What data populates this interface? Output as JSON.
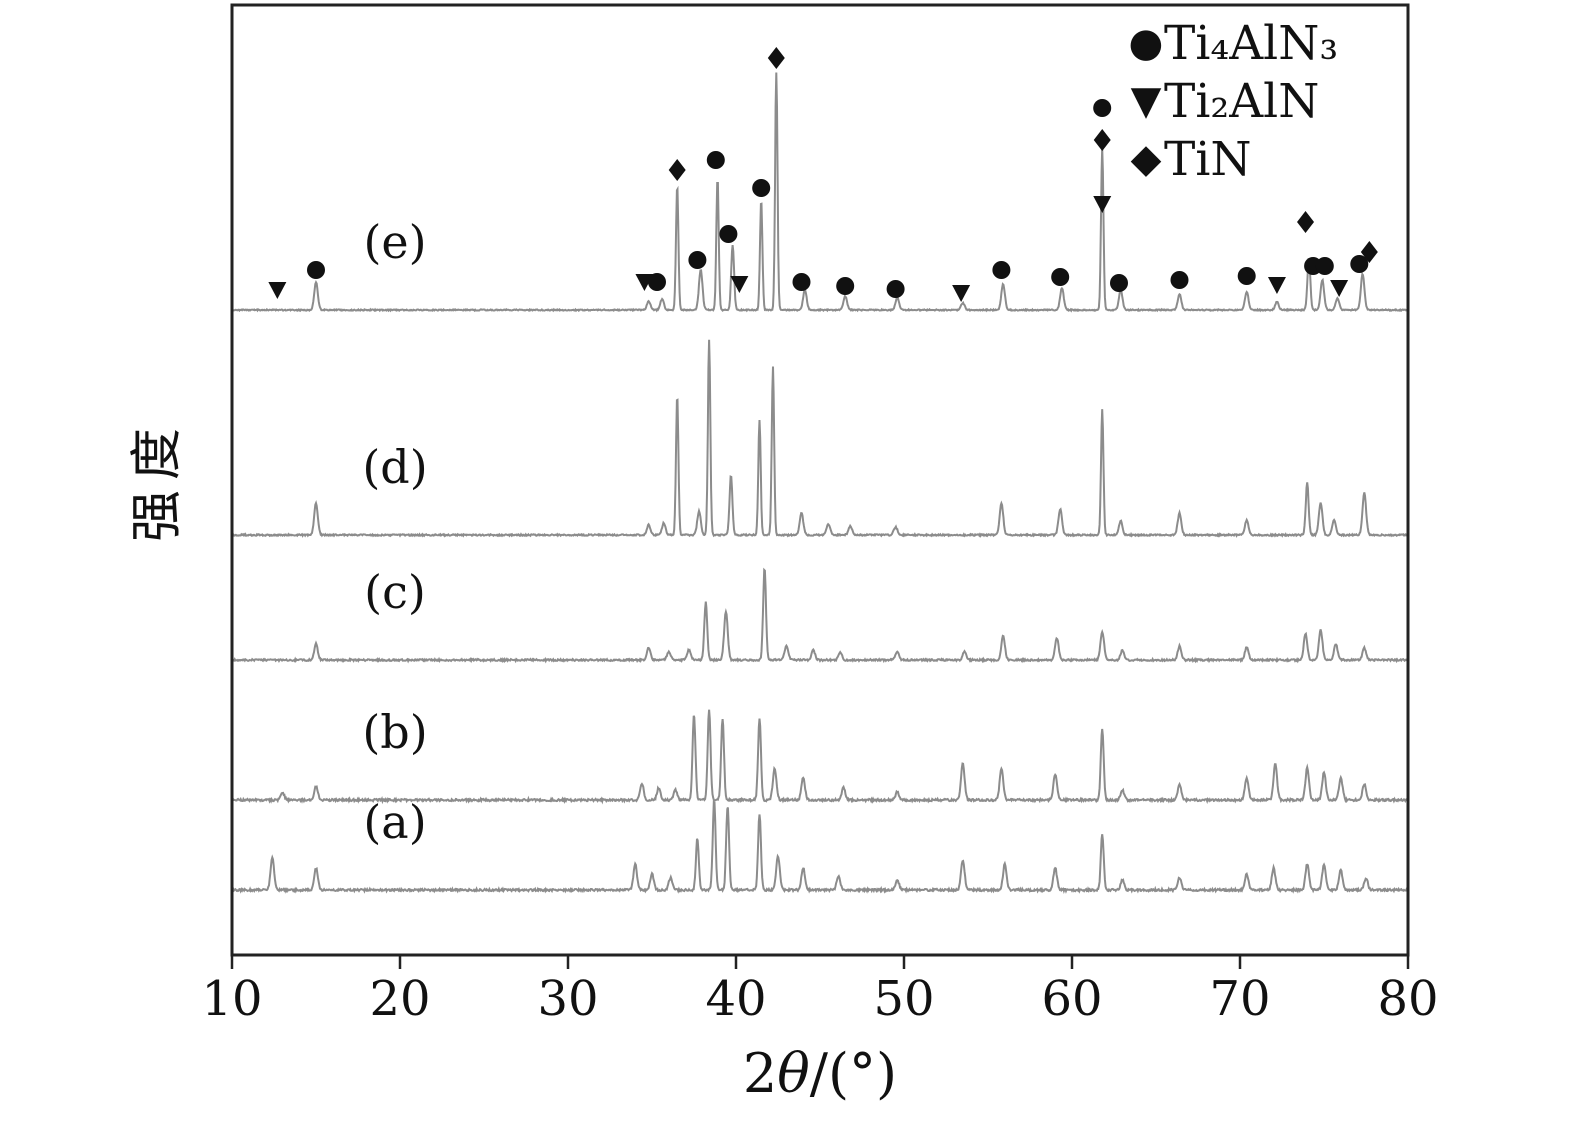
{
  "figure": {
    "ylabel": "强度",
    "xlabel_parts": {
      "pre": "2",
      "theta": "θ",
      "post": "/(°)"
    }
  },
  "chart_data": {
    "type": "line",
    "title": "",
    "xlabel": "2θ/(°)",
    "ylabel": "强度",
    "x_range": [
      10,
      80
    ],
    "ylim": [
      0,
      950
    ],
    "x_ticks": [
      10,
      20,
      30,
      40,
      50,
      60,
      70,
      80
    ],
    "grid": false,
    "legend_position": "top-right",
    "legend": [
      {
        "glyph": "●",
        "marker": "circle",
        "label": "Ti₄AlN₃"
      },
      {
        "glyph": "▼",
        "marker": "triangle-down",
        "label": "Ti₂AlN"
      },
      {
        "glyph": "◆",
        "marker": "diamond",
        "label": "TiN"
      }
    ],
    "series": [
      {
        "name": "(a)",
        "offset": 65,
        "peaks": [
          [
            12.4,
            32
          ],
          [
            15.0,
            22
          ],
          [
            34.0,
            26
          ],
          [
            35.0,
            16
          ],
          [
            36.1,
            12
          ],
          [
            37.7,
            52
          ],
          [
            38.7,
            90
          ],
          [
            39.5,
            84
          ],
          [
            41.4,
            76
          ],
          [
            42.5,
            34
          ],
          [
            44.0,
            22
          ],
          [
            46.1,
            14
          ],
          [
            49.6,
            10
          ],
          [
            53.5,
            30
          ],
          [
            56.0,
            26
          ],
          [
            59.0,
            22
          ],
          [
            61.8,
            56
          ],
          [
            63.0,
            10
          ],
          [
            66.4,
            12
          ],
          [
            70.4,
            16
          ],
          [
            72.0,
            22
          ],
          [
            74.0,
            26
          ],
          [
            75.0,
            26
          ],
          [
            76.0,
            20
          ],
          [
            77.5,
            12
          ]
        ]
      },
      {
        "name": "(b)",
        "offset": 155,
        "peaks": [
          [
            13.0,
            8
          ],
          [
            15.0,
            14
          ],
          [
            34.4,
            16
          ],
          [
            35.4,
            12
          ],
          [
            36.4,
            10
          ],
          [
            37.5,
            86
          ],
          [
            38.4,
            90
          ],
          [
            39.2,
            82
          ],
          [
            41.4,
            82
          ],
          [
            42.3,
            32
          ],
          [
            44.0,
            22
          ],
          [
            46.4,
            12
          ],
          [
            49.6,
            8
          ],
          [
            53.5,
            36
          ],
          [
            55.8,
            32
          ],
          [
            59.0,
            26
          ],
          [
            61.8,
            72
          ],
          [
            63.0,
            10
          ],
          [
            66.4,
            16
          ],
          [
            70.4,
            22
          ],
          [
            72.1,
            36
          ],
          [
            74.0,
            32
          ],
          [
            75.0,
            28
          ],
          [
            76.0,
            22
          ],
          [
            77.4,
            16
          ]
        ]
      },
      {
        "name": "(c)",
        "offset": 295,
        "peaks": [
          [
            15.0,
            16
          ],
          [
            34.8,
            12
          ],
          [
            36.0,
            8
          ],
          [
            37.2,
            10
          ],
          [
            38.2,
            58
          ],
          [
            39.4,
            48
          ],
          [
            41.7,
            92
          ],
          [
            43.0,
            15
          ],
          [
            44.6,
            10
          ],
          [
            46.2,
            8
          ],
          [
            49.6,
            8
          ],
          [
            53.6,
            8
          ],
          [
            55.9,
            24
          ],
          [
            59.1,
            22
          ],
          [
            61.8,
            28
          ],
          [
            63.0,
            10
          ],
          [
            66.4,
            14
          ],
          [
            70.4,
            13
          ],
          [
            73.9,
            26
          ],
          [
            74.8,
            30
          ],
          [
            75.7,
            16
          ],
          [
            77.4,
            12
          ]
        ]
      },
      {
        "name": "(d)",
        "offset": 420,
        "peaks": [
          [
            15.0,
            32
          ],
          [
            34.8,
            10
          ],
          [
            35.7,
            12
          ],
          [
            36.5,
            140
          ],
          [
            37.8,
            24
          ],
          [
            38.4,
            195
          ],
          [
            39.7,
            60
          ],
          [
            41.4,
            115
          ],
          [
            42.2,
            168
          ],
          [
            43.9,
            22
          ],
          [
            45.5,
            11
          ],
          [
            46.8,
            9
          ],
          [
            49.5,
            8
          ],
          [
            55.8,
            32
          ],
          [
            59.3,
            26
          ],
          [
            61.8,
            126
          ],
          [
            62.9,
            14
          ],
          [
            66.4,
            22
          ],
          [
            70.4,
            15
          ],
          [
            74.0,
            52
          ],
          [
            74.8,
            32
          ],
          [
            75.6,
            15
          ],
          [
            77.4,
            42
          ]
        ]
      },
      {
        "name": "(e)",
        "offset": 645,
        "peaks": [
          [
            15.0,
            28
          ],
          [
            34.8,
            9
          ],
          [
            35.6,
            11
          ],
          [
            36.5,
            125
          ],
          [
            37.9,
            40
          ],
          [
            38.9,
            132
          ],
          [
            39.8,
            65
          ],
          [
            41.5,
            110
          ],
          [
            42.4,
            238
          ],
          [
            44.1,
            20
          ],
          [
            46.5,
            14
          ],
          [
            49.6,
            12
          ],
          [
            53.5,
            7
          ],
          [
            55.9,
            26
          ],
          [
            59.4,
            22
          ],
          [
            61.8,
            162
          ],
          [
            62.9,
            20
          ],
          [
            66.4,
            16
          ],
          [
            70.4,
            18
          ],
          [
            72.2,
            8
          ],
          [
            74.1,
            52
          ],
          [
            74.9,
            30
          ],
          [
            75.8,
            12
          ],
          [
            77.3,
            36
          ]
        ]
      }
    ],
    "peak_markers_on_series_e": {
      "circle": [
        [
          15.0,
          40
        ],
        [
          35.3,
          28
        ],
        [
          37.7,
          50
        ],
        [
          38.8,
          150
        ],
        [
          39.55,
          76
        ],
        [
          41.5,
          122
        ],
        [
          43.9,
          28
        ],
        [
          46.5,
          24
        ],
        [
          49.5,
          21
        ],
        [
          55.8,
          40
        ],
        [
          59.3,
          33
        ],
        [
          61.8,
          202
        ],
        [
          62.8,
          27
        ],
        [
          66.4,
          30
        ],
        [
          70.4,
          34
        ],
        [
          74.35,
          44
        ],
        [
          75.05,
          44
        ],
        [
          77.1,
          46
        ]
      ],
      "triangle": [
        [
          12.7,
          20
        ],
        [
          34.55,
          28
        ],
        [
          40.2,
          26
        ],
        [
          53.4,
          17
        ],
        [
          61.8,
          106
        ],
        [
          72.2,
          25
        ],
        [
          75.9,
          22
        ]
      ],
      "diamond": [
        [
          36.5,
          140
        ],
        [
          42.4,
          252
        ],
        [
          61.8,
          170
        ],
        [
          73.9,
          88
        ],
        [
          77.7,
          58
        ]
      ]
    },
    "style": {
      "trace_color": "#8c8c8c",
      "marker_color": "#111111",
      "axis_color": "#222222"
    }
  }
}
